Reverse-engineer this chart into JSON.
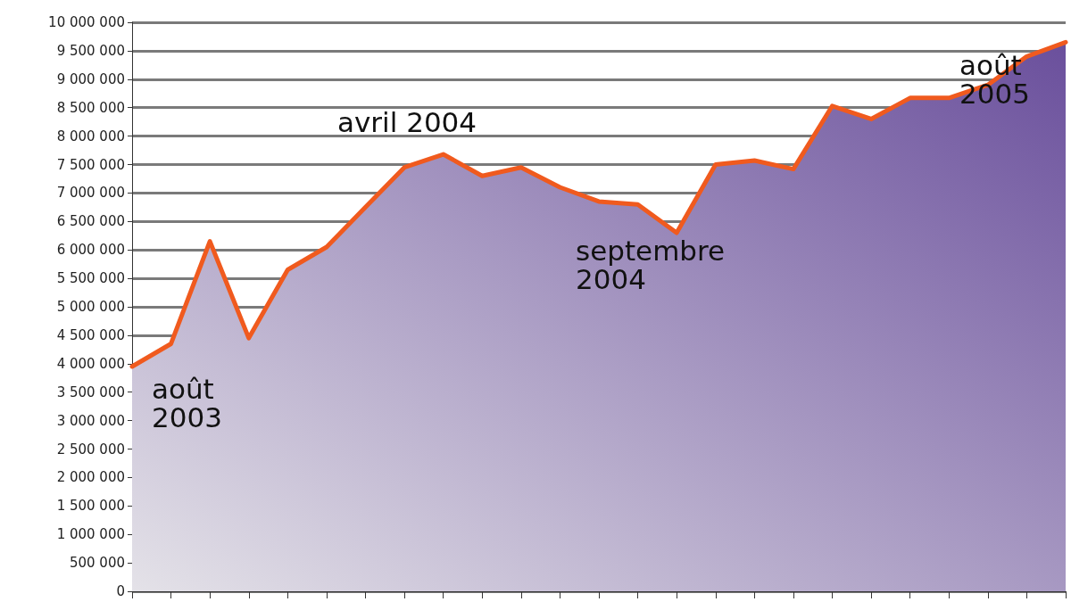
{
  "chart_data": {
    "type": "area",
    "categories": [
      null,
      null,
      null,
      null,
      null,
      null,
      null,
      null,
      null,
      null,
      null,
      null,
      null,
      null,
      null,
      null,
      null,
      null,
      null,
      null,
      null,
      null,
      null,
      null,
      null
    ],
    "series": [
      {
        "color": "#f05a1e",
        "values": [
          3950000,
          4350000,
          6150000,
          4450000,
          5650000,
          6050000,
          6750000,
          7450000,
          7680000,
          7300000,
          7450000,
          7100000,
          6850000,
          6800000,
          6300000,
          7500000,
          7570000,
          7420000,
          8530000,
          8300000,
          8670000,
          8670000,
          8900000,
          9400000,
          9650000
        ]
      }
    ],
    "ylim": [
      0,
      10000000
    ],
    "yticks": [
      {
        "value": 0,
        "label": "0"
      },
      {
        "value": 500000,
        "label": "500 000"
      },
      {
        "value": 1000000,
        "label": "1 000 000"
      },
      {
        "value": 1500000,
        "label": "1 500 000"
      },
      {
        "value": 2000000,
        "label": "2 000 000"
      },
      {
        "value": 2500000,
        "label": "2 500 000"
      },
      {
        "value": 3000000,
        "label": "3 000 000"
      },
      {
        "value": 3500000,
        "label": "3 500 000"
      },
      {
        "value": 4000000,
        "label": "4 000 000"
      },
      {
        "value": 4500000,
        "label": "4 500 000"
      },
      {
        "value": 5000000,
        "label": "5 000 000"
      },
      {
        "value": 5500000,
        "label": "5 500 000"
      },
      {
        "value": 6000000,
        "label": "6 000 000"
      },
      {
        "value": 6500000,
        "label": "6 500 000"
      },
      {
        "value": 7000000,
        "label": "7 000 000"
      },
      {
        "value": 7500000,
        "label": "7 500 000"
      },
      {
        "value": 8000000,
        "label": "8 000 000"
      },
      {
        "value": 8500000,
        "label": "8 500 000"
      },
      {
        "value": 9000000,
        "label": "9 000 000"
      },
      {
        "value": 9500000,
        "label": "9 500 000"
      },
      {
        "value": 10000000,
        "label": "10 000 000"
      }
    ],
    "annotations": [
      "août\n2003",
      "avril 2004",
      "septembre\n2004",
      "août\n2005"
    ],
    "grid": "y",
    "tick_labels": "y",
    "marker": "none",
    "line_style": "solid"
  }
}
